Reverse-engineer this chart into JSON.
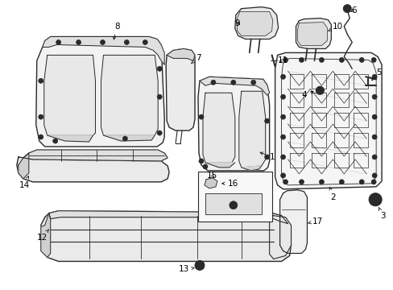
{
  "bg_color": "#ffffff",
  "line_color": "#2a2a2a",
  "figsize": [
    4.89,
    3.6
  ],
  "dpi": 100,
  "font_size": 7.5
}
